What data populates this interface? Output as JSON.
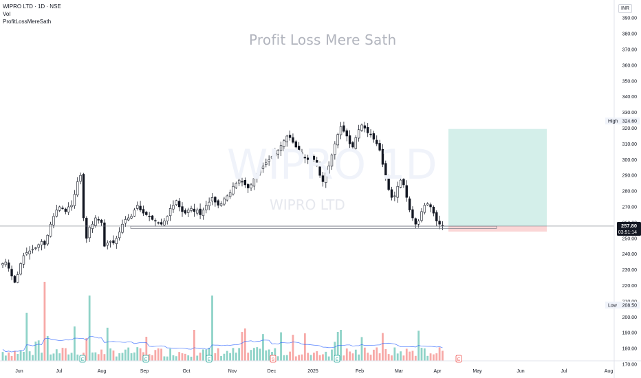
{
  "legend": {
    "symbol_line": "WIPRO LTD · 1D · NSE",
    "volume_label": "Vol",
    "indicator_label": "ProfitLossMereSath"
  },
  "watermarks": {
    "brand": "Profit Loss Mere Sath",
    "symbol": "WIPRO 1D",
    "name": "WIPRO LTD"
  },
  "price_axis": {
    "currency": "INR",
    "ticks": [
      "390.00",
      "380.00",
      "370.00",
      "360.00",
      "350.00",
      "340.00",
      "330.00",
      "320.00",
      "310.00",
      "300.00",
      "290.00",
      "280.00",
      "270.00",
      "260.00",
      "250.00",
      "240.00",
      "230.00",
      "220.00",
      "210.00",
      "200.00",
      "190.00",
      "180.00",
      "170.00"
    ],
    "high_label": "High",
    "high_value": "324.60",
    "low_label": "Low",
    "low_value": "208.50",
    "last_price": "257.80",
    "countdown": "03:51:14"
  },
  "time_axis": {
    "ticks": [
      "Jun",
      "Jul",
      "Aug",
      "Sep",
      "Oct",
      "Nov",
      "Dec",
      "2025",
      "Feb",
      "Mar",
      "Apr",
      "May",
      "Jun",
      "Jul",
      "Aug"
    ]
  },
  "event_markers": {
    "earnings_letter": "E",
    "split_letter": "S"
  },
  "colors": {
    "up": "#26a69a",
    "down": "#ef5350",
    "vol_up": "#8fd3c8",
    "vol_down": "#f7a9a7",
    "vol_ma": "#2962ff",
    "profit_zone": "#d4efea",
    "loss_zone": "#fbd6d6",
    "last_price_badge": "#131722"
  },
  "chart_data": {
    "type": "candlestick",
    "symbol": "WIPRO LTD",
    "interval": "1D",
    "exchange": "NSE",
    "ylim": [
      170,
      393
    ],
    "grid": false,
    "last_price": 257.8,
    "high": 324.6,
    "low": 208.5,
    "support_line": 257,
    "position_tool": {
      "entry": 257.8,
      "target": 319.5,
      "stop": 254.3
    },
    "vol_ma_range": [
      176,
      186
    ],
    "closes": [
      234,
      235,
      231,
      226,
      222,
      227,
      234,
      239,
      241,
      242,
      243,
      244,
      246,
      248,
      246,
      252,
      259,
      264,
      268,
      270,
      269,
      267,
      270,
      271,
      278,
      286,
      290,
      263,
      250,
      257,
      259,
      263,
      262,
      260,
      245,
      247,
      248,
      247,
      250,
      254,
      259,
      262,
      263,
      264,
      268,
      271,
      268,
      266,
      265,
      264,
      262,
      261,
      260,
      259,
      261,
      264,
      269,
      271,
      274,
      270,
      267,
      266,
      268,
      269,
      267,
      268,
      265,
      268,
      271,
      273,
      276,
      273,
      271,
      272,
      275,
      277,
      279,
      283,
      285,
      287,
      286,
      284,
      282,
      284,
      288,
      291,
      294,
      296,
      298,
      300,
      302,
      304,
      306,
      309,
      312,
      315,
      314,
      311,
      308,
      305,
      302,
      301,
      300,
      303,
      300,
      296,
      290,
      286,
      292,
      296,
      303,
      310,
      316,
      321,
      318,
      315,
      310,
      308,
      314,
      319,
      322,
      320,
      317,
      316,
      313,
      310,
      306,
      297,
      289,
      281,
      276,
      277,
      283,
      287,
      284,
      276,
      268,
      263,
      259,
      261,
      267,
      271,
      272,
      270,
      266,
      261,
      259,
      257.8
    ]
  }
}
